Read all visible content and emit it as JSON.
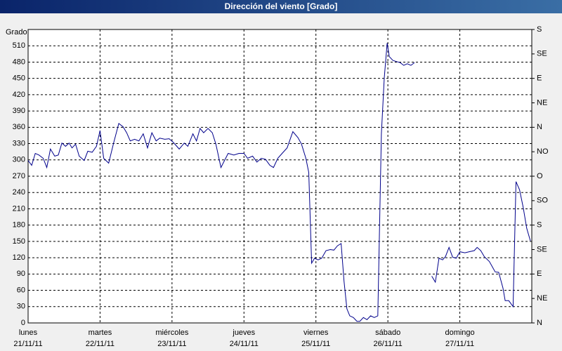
{
  "chart_data": {
    "type": "line",
    "title": "Dirección del viento [Grado]",
    "y_label": "Grado",
    "xlim": [
      0,
      7
    ],
    "xticks": [
      {
        "value": 0,
        "label": "lunes"
      },
      {
        "value": 1,
        "label": "martes"
      },
      {
        "value": 2,
        "label": "miércoles"
      },
      {
        "value": 3,
        "label": "jueves"
      },
      {
        "value": 4,
        "label": "viernes"
      },
      {
        "value": 5,
        "label": "sábado"
      },
      {
        "value": 6,
        "label": "domingo"
      }
    ],
    "xtick_dates": [
      "21/11/11",
      "22/11/11",
      "23/11/11",
      "24/11/11",
      "25/11/11",
      "26/11/11",
      "27/11/11"
    ],
    "ylim": [
      0,
      540
    ],
    "yticks": [
      0,
      30,
      60,
      90,
      120,
      150,
      180,
      210,
      240,
      270,
      300,
      330,
      360,
      390,
      420,
      450,
      480,
      510
    ],
    "y2lim": [
      0,
      540
    ],
    "y2ticks": [
      {
        "value": 0,
        "label": "N"
      },
      {
        "value": 45,
        "label": "NE"
      },
      {
        "value": 90,
        "label": "E"
      },
      {
        "value": 135,
        "label": "SE"
      },
      {
        "value": 180,
        "label": "S"
      },
      {
        "value": 225,
        "label": "SO"
      },
      {
        "value": 270,
        "label": "O"
      },
      {
        "value": 315,
        "label": "NO"
      },
      {
        "value": 360,
        "label": "N"
      },
      {
        "value": 405,
        "label": "NE"
      },
      {
        "value": 450,
        "label": "E"
      },
      {
        "value": 495,
        "label": "SE"
      },
      {
        "value": 540,
        "label": "S"
      }
    ],
    "grid": true,
    "series": [
      {
        "color": "#00008b",
        "x": [
          0,
          0.05,
          0.1,
          0.15,
          0.21,
          0.26,
          0.31,
          0.37,
          0.42,
          0.47,
          0.52,
          0.57,
          0.61,
          0.66,
          0.71,
          0.78,
          0.83,
          0.89,
          0.95,
          1.0,
          1.05,
          1.12,
          1.19,
          1.26,
          1.32,
          1.37,
          1.42,
          1.48,
          1.54,
          1.6,
          1.66,
          1.72,
          1.78,
          1.83,
          1.9,
          1.96,
          2.02,
          2.1,
          2.17,
          2.22,
          2.29,
          2.34,
          2.39,
          2.44,
          2.5,
          2.56,
          2.61,
          2.68,
          2.73,
          2.78,
          2.86,
          2.93,
          3.0,
          3.05,
          3.12,
          3.18,
          3.24,
          3.3,
          3.36,
          3.41,
          3.47,
          3.53,
          3.6,
          3.68,
          3.75,
          3.8,
          3.86,
          3.9,
          3.94,
          3.98,
          4.03,
          4.08,
          4.14,
          4.2,
          4.25,
          4.3,
          4.35,
          4.39,
          4.43,
          4.47,
          4.52,
          4.57,
          4.61,
          4.66,
          4.71,
          4.76,
          4.81,
          4.86,
          4.91,
          4.95,
          4.99,
          5.02,
          5.07,
          5.12,
          5.17,
          5.22,
          5.27,
          5.32,
          5.37,
          5.45,
          5.61,
          5.66,
          5.71,
          5.76,
          5.8,
          5.85,
          5.9,
          5.95,
          6.0,
          6.07,
          6.13,
          6.2,
          6.24,
          6.29,
          6.34,
          6.41,
          6.49,
          6.54,
          6.6,
          6.63,
          6.68,
          6.74,
          6.78,
          6.83,
          6.88,
          6.93,
          6.98
        ],
        "values": [
          299,
          290,
          312,
          309,
          303,
          286,
          320,
          307,
          309,
          331,
          325,
          331,
          322,
          329,
          307,
          299,
          316,
          314,
          325,
          354,
          303,
          294,
          332,
          367,
          361,
          350,
          335,
          338,
          335,
          348,
          322,
          350,
          335,
          340,
          338,
          339,
          332,
          320,
          331,
          325,
          348,
          335,
          358,
          350,
          358,
          350,
          329,
          286,
          299,
          312,
          309,
          312,
          312,
          303,
          307,
          296,
          303,
          301,
          290,
          286,
          303,
          312,
          322,
          352,
          341,
          329,
          303,
          277,
          110,
          119,
          116,
          119,
          133,
          135,
          134,
          142,
          146,
          77,
          26,
          13,
          10,
          3,
          3,
          10,
          6,
          13,
          10,
          13,
          348,
          451,
          515,
          490,
          483,
          481,
          479,
          474,
          477,
          474,
          479,
          null,
          86,
          75,
          119,
          116,
          122,
          139,
          121,
          119,
          131,
          129,
          131,
          133,
          139,
          133,
          122,
          113,
          94,
          93,
          64,
          41,
          41,
          30,
          260,
          245,
          213,
          174,
          151
        ]
      }
    ]
  }
}
